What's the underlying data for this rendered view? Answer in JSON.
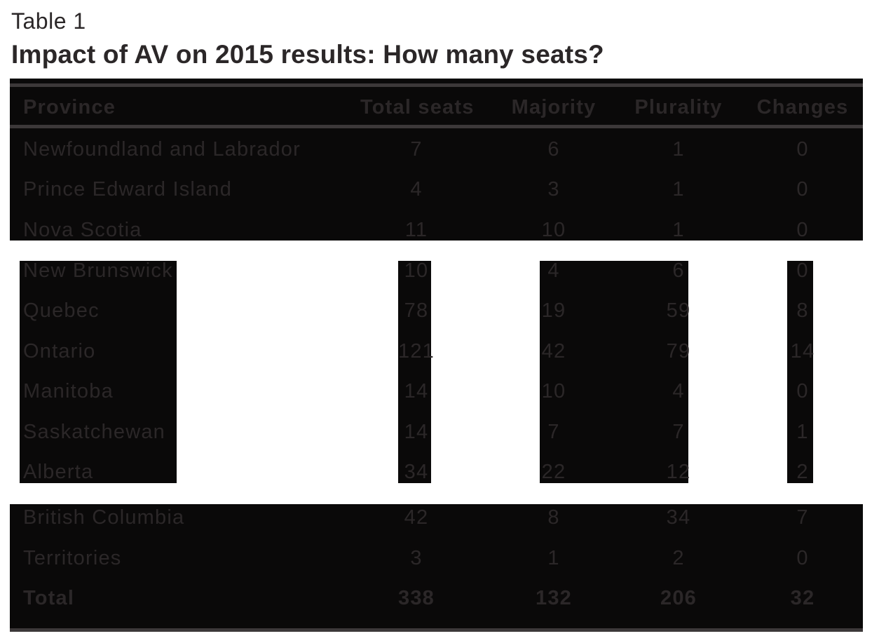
{
  "caption": {
    "label": "Table 1",
    "title": "Impact of AV on 2015 results: How many seats?"
  },
  "table": {
    "columns": [
      "Province",
      "Total seats",
      "Majority",
      "Plurality",
      "Changes"
    ],
    "rows": [
      {
        "province": "Newfoundland and Labrador",
        "total_seats": "7",
        "majority": "6",
        "plurality": "1",
        "changes": "0"
      },
      {
        "province": "Prince Edward Island",
        "total_seats": "4",
        "majority": "3",
        "plurality": "1",
        "changes": "0"
      },
      {
        "province": "Nova Scotia",
        "total_seats": "11",
        "majority": "10",
        "plurality": "1",
        "changes": "0"
      },
      {
        "province": "New Brunswick",
        "total_seats": "10",
        "majority": "4",
        "plurality": "6",
        "changes": "0"
      },
      {
        "province": "Quebec",
        "total_seats": "78",
        "majority": "19",
        "plurality": "59",
        "changes": "8"
      },
      {
        "province": "Ontario",
        "total_seats": "121",
        "majority": "42",
        "plurality": "79",
        "changes": "14"
      },
      {
        "province": "Manitoba",
        "total_seats": "14",
        "majority": "10",
        "plurality": "4",
        "changes": "0"
      },
      {
        "province": "Saskatchewan",
        "total_seats": "14",
        "majority": "7",
        "plurality": "7",
        "changes": "1"
      },
      {
        "province": "Alberta",
        "total_seats": "34",
        "majority": "22",
        "plurality": "12",
        "changes": "2"
      },
      {
        "province": "British Columbia",
        "total_seats": "42",
        "majority": "8",
        "plurality": "34",
        "changes": "7"
      },
      {
        "province": "Territories",
        "total_seats": "3",
        "majority": "1",
        "plurality": "2",
        "changes": "0"
      },
      {
        "province": "Total",
        "total_seats": "338",
        "majority": "132",
        "plurality": "206",
        "changes": "32",
        "bold": true
      }
    ]
  },
  "colors": {
    "background": "#ffffff",
    "fill_black": "#0a0909",
    "text": "#2b2728",
    "rule": "#3c3839"
  }
}
